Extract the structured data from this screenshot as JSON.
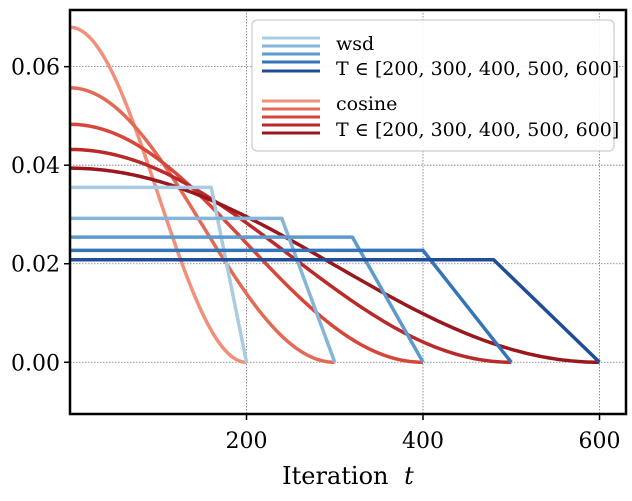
{
  "chart_data": {
    "type": "line",
    "xlabel": "Iteration",
    "xlabel_var": "t",
    "ylabel": "",
    "xlim": [
      0,
      630
    ],
    "ylim": [
      -0.0105,
      0.0715
    ],
    "x_ticks": [
      200,
      400,
      600
    ],
    "x_tick_labels": [
      "200",
      "400",
      "600"
    ],
    "y_ticks": [
      0.0,
      0.02,
      0.04,
      0.06
    ],
    "y_tick_labels": [
      "0.00",
      "0.02",
      "0.04",
      "0.06"
    ],
    "grid": true,
    "legend_placement": "top-right",
    "legend": {
      "wsd_label": "wsd",
      "wsd_T_label": "T ∈ [200, 300, 400, 500, 600]",
      "cosine_label": "cosine",
      "cosine_T_label": "T ∈ [200, 300, 400, 500, 600]"
    },
    "wsd_series": [
      {
        "T": 200,
        "lr": 0.0355,
        "decay_start": 160,
        "color": "#a9cce3"
      },
      {
        "T": 300,
        "lr": 0.0292,
        "decay_start": 240,
        "color": "#85b5d9"
      },
      {
        "T": 400,
        "lr": 0.0254,
        "decay_start": 320,
        "color": "#5e9acc"
      },
      {
        "T": 500,
        "lr": 0.0227,
        "decay_start": 400,
        "color": "#3674b8"
      },
      {
        "T": 600,
        "lr": 0.0208,
        "decay_start": 480,
        "color": "#1f4e96"
      }
    ],
    "cosine_series": [
      {
        "T": 200,
        "lr_max": 0.068,
        "color": "#f0907a"
      },
      {
        "T": 300,
        "lr_max": 0.0557,
        "color": "#e36a55"
      },
      {
        "T": 400,
        "lr_max": 0.0483,
        "color": "#d8463a"
      },
      {
        "T": 500,
        "lr_max": 0.0432,
        "color": "#bb2a2a"
      },
      {
        "T": 600,
        "lr_max": 0.0394,
        "color": "#99171d"
      }
    ]
  }
}
